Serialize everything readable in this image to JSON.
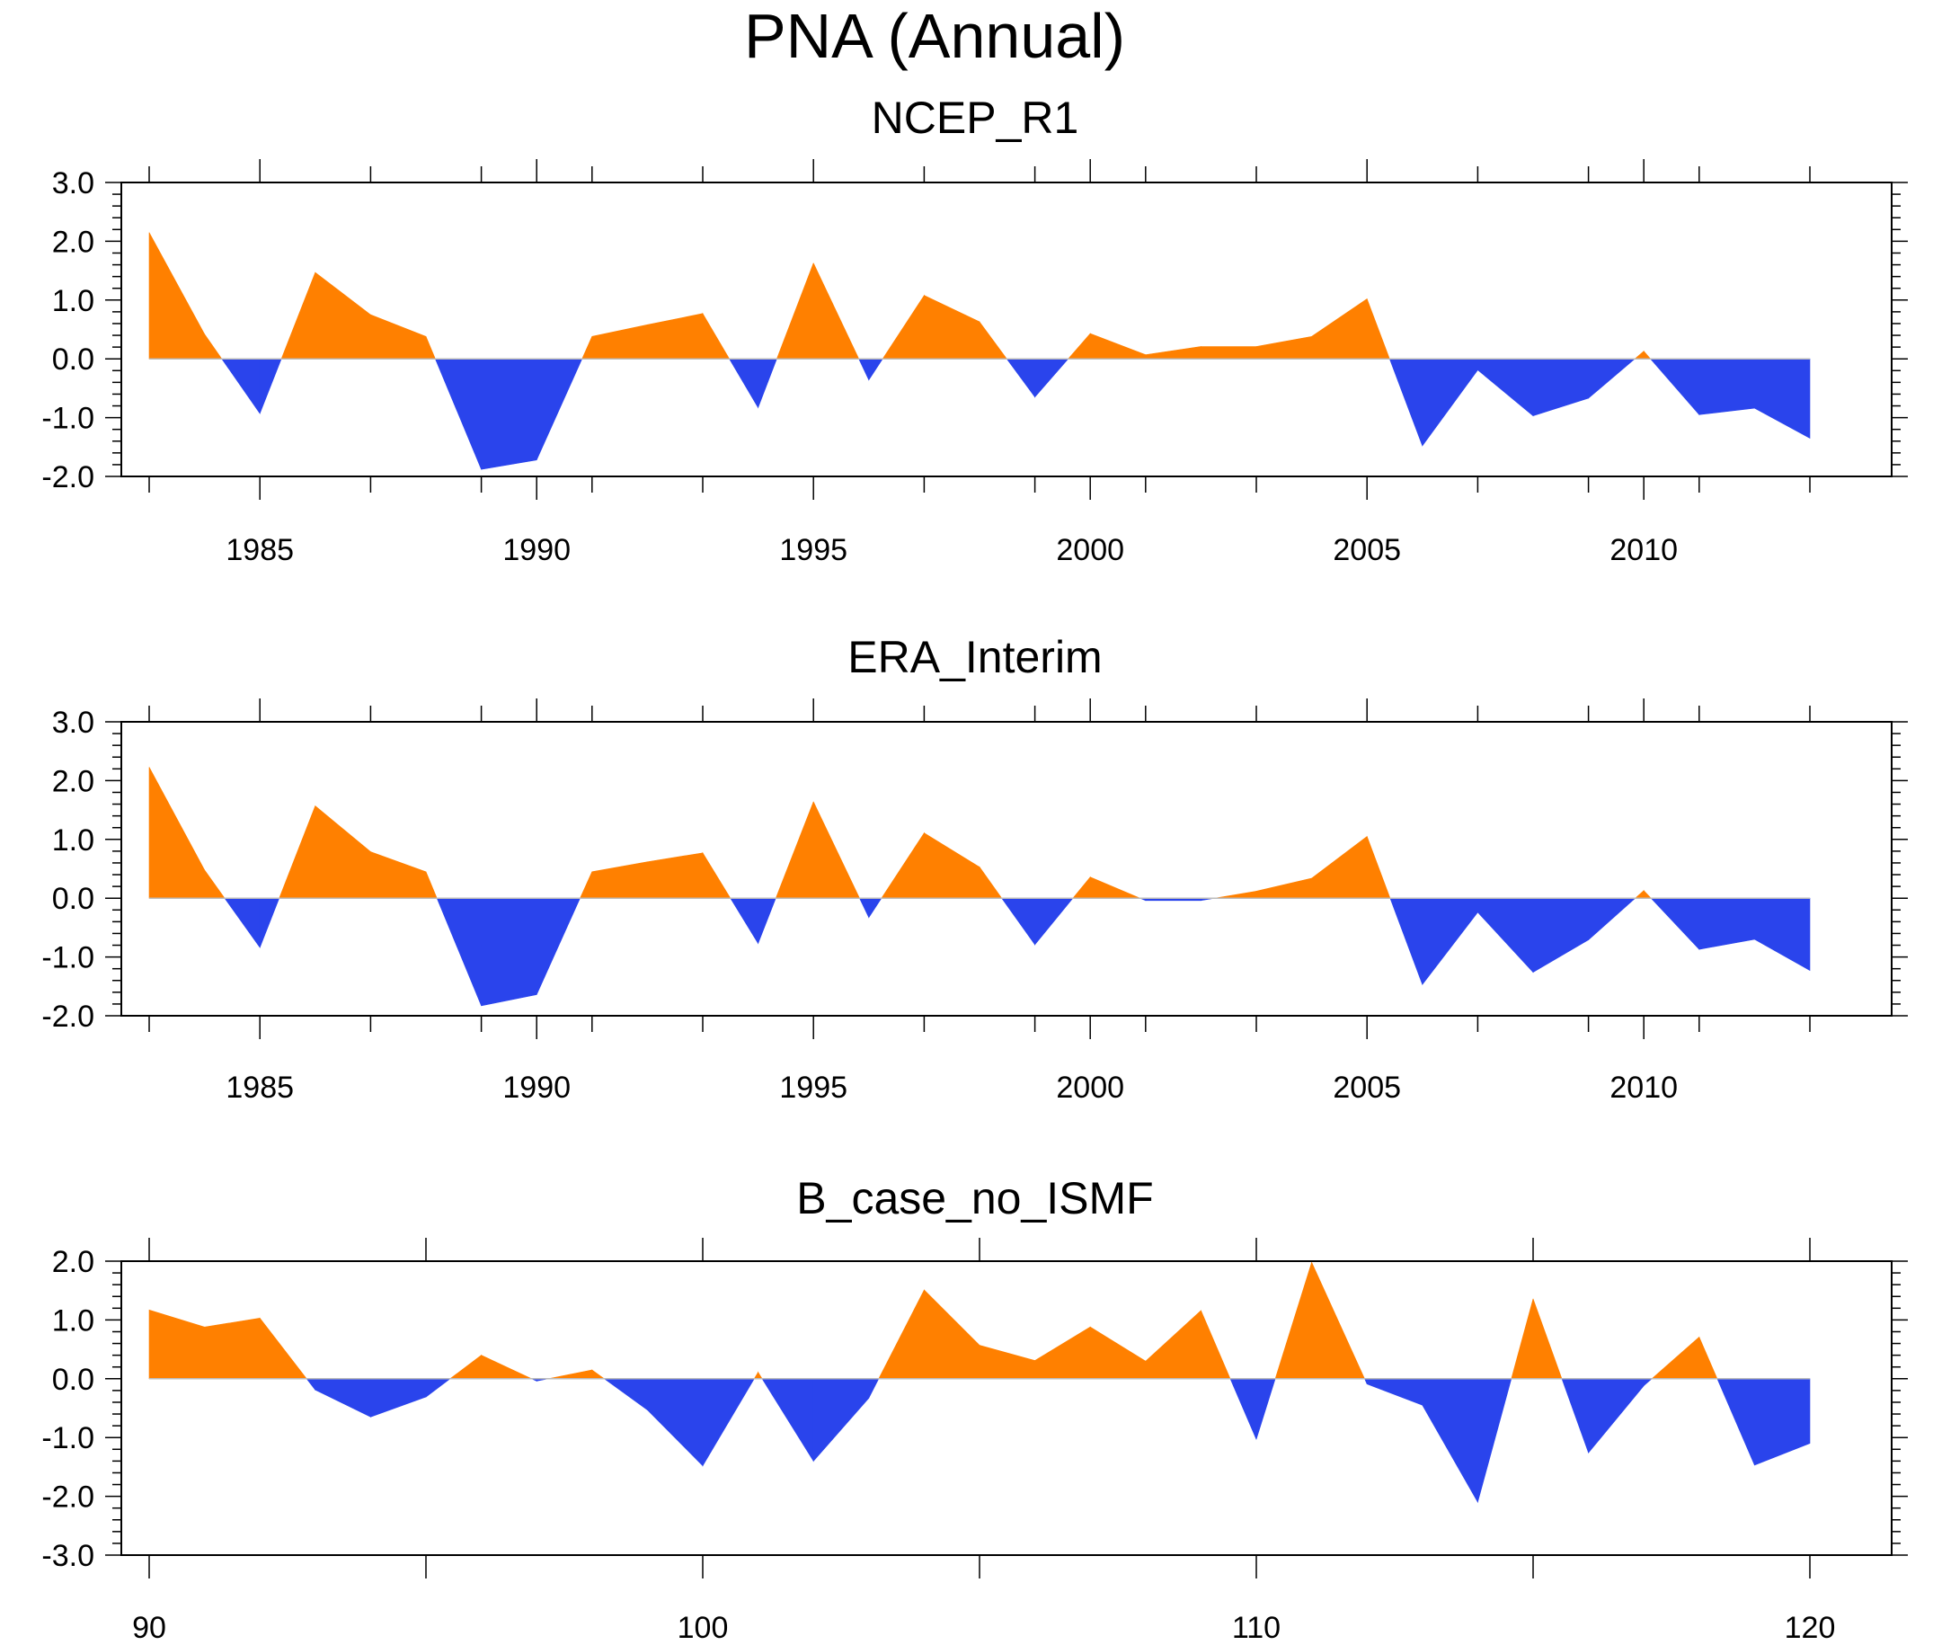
{
  "title": "PNA (Annual)",
  "colors": {
    "positive": "#FF8000",
    "negative": "#2A44EC",
    "axis": "#000000",
    "zero_line": "#bbbbbb"
  },
  "chart_data": [
    {
      "type": "area",
      "title": "NCEP_R1",
      "xlabel": "",
      "ylabel": "",
      "xlim": [
        1982,
        2014
      ],
      "ylim": [
        -2.0,
        3.0
      ],
      "xticks": [
        1985,
        1990,
        1995,
        2000,
        2005,
        2010
      ],
      "xtick_labels": [
        "1985",
        "1990",
        "1995",
        "2000",
        "2005",
        "2010"
      ],
      "yticks": [
        -2.0,
        -1.0,
        0.0,
        1.0,
        2.0,
        3.0
      ],
      "ytick_labels": [
        "-2.0",
        "-1.0",
        "0.0",
        "1.0",
        "2.0",
        "3.0"
      ],
      "x": [
        1983,
        1984,
        1985,
        1986,
        1987,
        1988,
        1989,
        1990,
        1991,
        1992,
        1993,
        1994,
        1995,
        1996,
        1997,
        1998,
        1999,
        2000,
        2001,
        2002,
        2003,
        2004,
        2005,
        2006,
        2007,
        2008,
        2009,
        2010,
        2011,
        2012,
        2013
      ],
      "values": [
        2.15,
        0.42,
        -0.93,
        1.47,
        0.75,
        0.38,
        -1.88,
        -1.72,
        0.38,
        0.58,
        0.77,
        -0.83,
        1.63,
        -0.36,
        1.08,
        0.63,
        -0.65,
        0.43,
        0.07,
        0.21,
        0.21,
        0.38,
        1.02,
        -1.48,
        -0.19,
        -0.97,
        -0.67,
        0.13,
        -0.95,
        -0.84,
        -1.35
      ]
    },
    {
      "type": "area",
      "title": "ERA_Interim",
      "xlabel": "",
      "ylabel": "",
      "xlim": [
        1982,
        2014
      ],
      "ylim": [
        -2.0,
        3.0
      ],
      "xticks": [
        1985,
        1990,
        1995,
        2000,
        2005,
        2010
      ],
      "xtick_labels": [
        "1985",
        "1990",
        "1995",
        "2000",
        "2005",
        "2010"
      ],
      "yticks": [
        -2.0,
        -1.0,
        0.0,
        1.0,
        2.0,
        3.0
      ],
      "ytick_labels": [
        "-2.0",
        "-1.0",
        "0.0",
        "1.0",
        "2.0",
        "3.0"
      ],
      "x": [
        1983,
        1984,
        1985,
        1986,
        1987,
        1988,
        1989,
        1990,
        1991,
        1992,
        1993,
        1994,
        1995,
        1996,
        1997,
        1998,
        1999,
        2000,
        2001,
        2002,
        2003,
        2004,
        2005,
        2006,
        2007,
        2008,
        2009,
        2010,
        2011,
        2012,
        2013
      ],
      "values": [
        2.23,
        0.48,
        -0.84,
        1.57,
        0.79,
        0.45,
        -1.83,
        -1.64,
        0.45,
        0.62,
        0.77,
        -0.77,
        1.64,
        -0.33,
        1.11,
        0.53,
        -0.79,
        0.36,
        -0.04,
        -0.04,
        0.12,
        0.34,
        1.05,
        -1.47,
        -0.24,
        -1.26,
        -0.71,
        0.13,
        -0.87,
        -0.7,
        -1.23
      ]
    },
    {
      "type": "area",
      "title": "B_case_no_ISMF",
      "xlabel": "",
      "ylabel": "",
      "xlim": [
        90,
        121.5
      ],
      "ylim": [
        -3.0,
        2.0
      ],
      "xticks": [
        90,
        100,
        110,
        120
      ],
      "xtick_labels": [
        "90",
        "100",
        "110",
        "120"
      ],
      "yticks": [
        -3.0,
        -2.0,
        -1.0,
        0.0,
        1.0,
        2.0
      ],
      "ytick_labels": [
        "-3.0",
        "-2.0",
        "-1.0",
        "0.0",
        "1.0",
        "2.0"
      ],
      "x": [
        90,
        91,
        92,
        93,
        94,
        95,
        96,
        97,
        98,
        99,
        100,
        101,
        102,
        103,
        104,
        105,
        106,
        107,
        108,
        109,
        110,
        111,
        112,
        113,
        114,
        115,
        116,
        117,
        118,
        119,
        120
      ],
      "values": [
        1.17,
        0.88,
        1.03,
        -0.19,
        -0.65,
        -0.31,
        0.4,
        -0.04,
        0.15,
        -0.53,
        -1.48,
        0.11,
        -1.4,
        -0.33,
        1.51,
        0.57,
        0.31,
        0.88,
        0.3,
        1.16,
        -1.03,
        1.98,
        -0.09,
        -0.45,
        -2.1,
        1.36,
        -1.26,
        -0.12,
        0.71,
        -1.47,
        -1.1
      ]
    }
  ]
}
